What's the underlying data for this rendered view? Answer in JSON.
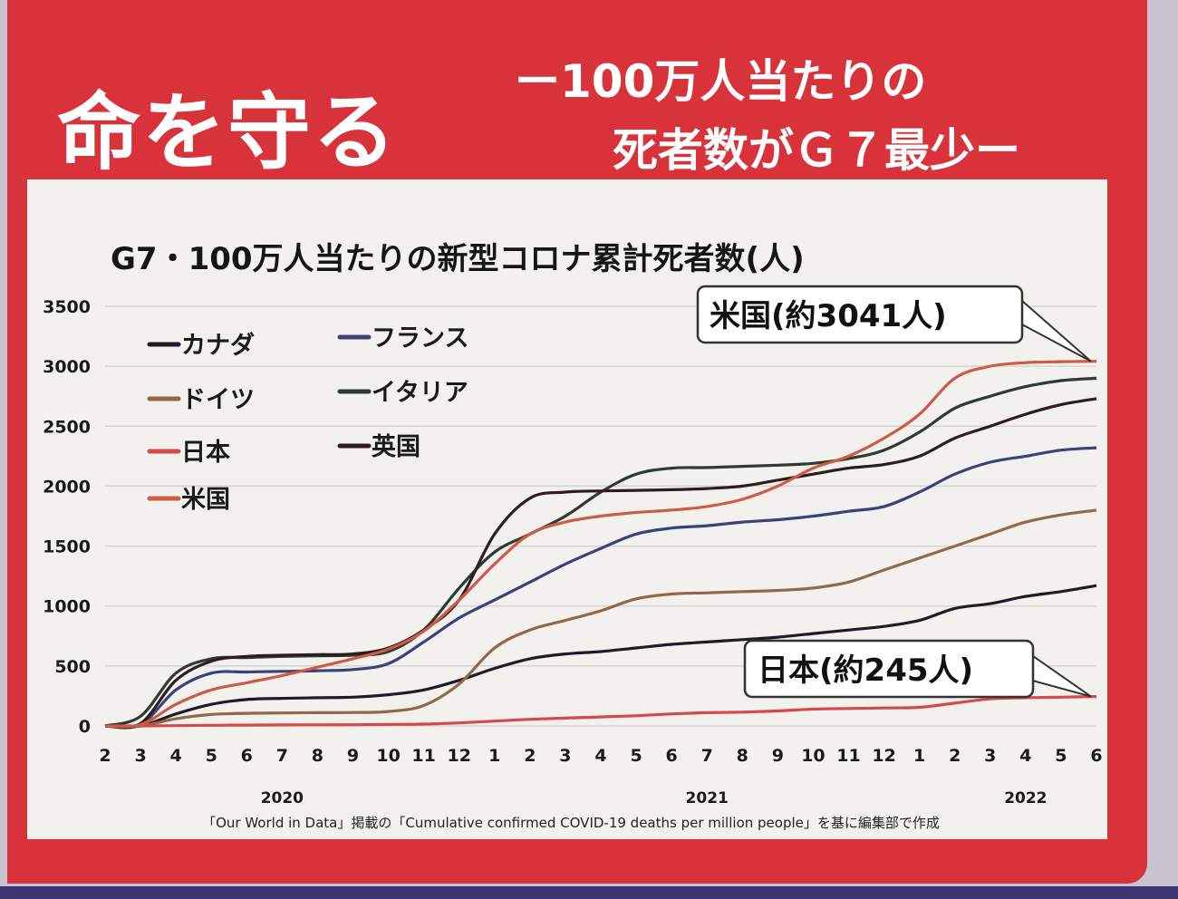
{
  "headline": "命を守る",
  "subheadline_1": "ー100万人当たりの",
  "subheadline_2": "死者数がＧ７最少ー",
  "source_note": "「Our World in Data」掲載の「Cumulative confirmed COVID-19 deaths per million people」を基に編集部で作成",
  "colors": {
    "poster_red": "#d8333b",
    "panel": "#f2f1ed",
    "canada": "#1f1c27",
    "france": "#3a4276",
    "germany": "#93684a",
    "italy": "#2e3a32",
    "japan": "#d44a4c",
    "uk": "#2e1d1f",
    "usa": "#cc5c48"
  },
  "chart_data": {
    "type": "line",
    "title": "G7・100万人当たりの新型コロナ累計死者数(人)",
    "xlabel": "",
    "ylabel": "",
    "ylim": [
      0,
      3500
    ],
    "yticks": [
      0,
      500,
      1000,
      1500,
      2000,
      2500,
      3000,
      3500
    ],
    "grid": true,
    "legend_position": "top-left",
    "x_tick_labels": [
      "2",
      "3",
      "4",
      "5",
      "6",
      "7",
      "8",
      "9",
      "10",
      "11",
      "12",
      "1",
      "2",
      "3",
      "4",
      "5",
      "6",
      "7",
      "8",
      "9",
      "10",
      "11",
      "12",
      "1",
      "2",
      "3",
      "4",
      "5",
      "6"
    ],
    "x_tick_months": [
      "2020-02",
      "2020-03",
      "2020-04",
      "2020-05",
      "2020-06",
      "2020-07",
      "2020-08",
      "2020-09",
      "2020-10",
      "2020-11",
      "2020-12",
      "2021-01",
      "2021-02",
      "2021-03",
      "2021-04",
      "2021-05",
      "2021-06",
      "2021-07",
      "2021-08",
      "2021-09",
      "2021-10",
      "2021-11",
      "2021-12",
      "2022-01",
      "2022-02",
      "2022-03",
      "2022-04",
      "2022-05",
      "2022-06"
    ],
    "year_labels": [
      {
        "label": "2020",
        "month": "2020-07"
      },
      {
        "label": "2021",
        "month": "2021-07"
      },
      {
        "label": "2022",
        "month": "2022-04"
      }
    ],
    "series": [
      {
        "name": "カナダ",
        "color_key": "canada",
        "x": [
          "2020-02",
          "2020-03",
          "2020-04",
          "2020-05",
          "2020-06",
          "2020-07",
          "2020-08",
          "2020-09",
          "2020-10",
          "2020-11",
          "2020-12",
          "2021-01",
          "2021-02",
          "2021-03",
          "2021-04",
          "2021-05",
          "2021-06",
          "2021-07",
          "2021-08",
          "2021-09",
          "2021-10",
          "2021-11",
          "2021-12",
          "2022-01",
          "2022-02",
          "2022-03",
          "2022-04",
          "2022-05",
          "2022-06"
        ],
        "y": [
          0,
          0,
          100,
          180,
          220,
          230,
          235,
          240,
          260,
          300,
          380,
          480,
          560,
          600,
          620,
          650,
          680,
          700,
          720,
          740,
          770,
          800,
          830,
          880,
          980,
          1020,
          1080,
          1120,
          1170
        ]
      },
      {
        "name": "フランス",
        "color_key": "france",
        "x": [
          "2020-02",
          "2020-03",
          "2020-04",
          "2020-05",
          "2020-06",
          "2020-07",
          "2020-08",
          "2020-09",
          "2020-10",
          "2020-11",
          "2020-12",
          "2021-01",
          "2021-02",
          "2021-03",
          "2021-04",
          "2021-05",
          "2021-06",
          "2021-07",
          "2021-08",
          "2021-09",
          "2021-10",
          "2021-11",
          "2021-12",
          "2022-01",
          "2022-02",
          "2022-03",
          "2022-04",
          "2022-05",
          "2022-06"
        ],
        "y": [
          0,
          10,
          300,
          440,
          450,
          455,
          460,
          470,
          520,
          700,
          900,
          1050,
          1200,
          1350,
          1480,
          1600,
          1650,
          1670,
          1700,
          1720,
          1750,
          1790,
          1830,
          1950,
          2100,
          2200,
          2250,
          2300,
          2320
        ]
      },
      {
        "name": "ドイツ",
        "color_key": "germany",
        "x": [
          "2020-02",
          "2020-03",
          "2020-04",
          "2020-05",
          "2020-06",
          "2020-07",
          "2020-08",
          "2020-09",
          "2020-10",
          "2020-11",
          "2020-12",
          "2021-01",
          "2021-02",
          "2021-03",
          "2021-04",
          "2021-05",
          "2021-06",
          "2021-07",
          "2021-08",
          "2021-09",
          "2021-10",
          "2021-11",
          "2021-12",
          "2022-01",
          "2022-02",
          "2022-03",
          "2022-04",
          "2022-05",
          "2022-06"
        ],
        "y": [
          0,
          0,
          60,
          95,
          105,
          108,
          110,
          112,
          120,
          170,
          350,
          650,
          800,
          880,
          960,
          1060,
          1100,
          1110,
          1120,
          1130,
          1150,
          1200,
          1300,
          1400,
          1500,
          1600,
          1700,
          1760,
          1800
        ]
      },
      {
        "name": "イタリア",
        "color_key": "italy",
        "x": [
          "2020-02",
          "2020-03",
          "2020-04",
          "2020-05",
          "2020-06",
          "2020-07",
          "2020-08",
          "2020-09",
          "2020-10",
          "2020-11",
          "2020-12",
          "2021-01",
          "2021-02",
          "2021-03",
          "2021-04",
          "2021-05",
          "2021-06",
          "2021-07",
          "2021-08",
          "2021-09",
          "2021-10",
          "2021-11",
          "2021-12",
          "2022-01",
          "2022-02",
          "2022-03",
          "2022-04",
          "2022-05",
          "2022-06"
        ],
        "y": [
          0,
          80,
          440,
          560,
          570,
          580,
          585,
          590,
          620,
          800,
          1150,
          1450,
          1600,
          1750,
          1950,
          2100,
          2150,
          2155,
          2165,
          2175,
          2190,
          2230,
          2300,
          2450,
          2650,
          2750,
          2830,
          2880,
          2900
        ]
      },
      {
        "name": "日本",
        "color_key": "japan",
        "x": [
          "2020-02",
          "2020-03",
          "2020-04",
          "2020-05",
          "2020-06",
          "2020-07",
          "2020-08",
          "2020-09",
          "2020-10",
          "2020-11",
          "2020-12",
          "2021-01",
          "2021-02",
          "2021-03",
          "2021-04",
          "2021-05",
          "2021-06",
          "2021-07",
          "2021-08",
          "2021-09",
          "2021-10",
          "2021-11",
          "2021-12",
          "2022-01",
          "2022-02",
          "2022-03",
          "2022-04",
          "2022-05",
          "2022-06"
        ],
        "y": [
          0,
          0,
          2,
          5,
          7,
          8,
          9,
          10,
          12,
          15,
          25,
          40,
          55,
          65,
          75,
          85,
          100,
          110,
          115,
          125,
          140,
          145,
          150,
          155,
          190,
          225,
          235,
          240,
          245
        ]
      },
      {
        "name": "英国",
        "color_key": "uk",
        "x": [
          "2020-02",
          "2020-03",
          "2020-04",
          "2020-05",
          "2020-06",
          "2020-07",
          "2020-08",
          "2020-09",
          "2020-10",
          "2020-11",
          "2020-12",
          "2021-01",
          "2021-02",
          "2021-03",
          "2021-04",
          "2021-05",
          "2021-06",
          "2021-07",
          "2021-08",
          "2021-09",
          "2021-10",
          "2021-11",
          "2021-12",
          "2022-01",
          "2022-02",
          "2022-03",
          "2022-04",
          "2022-05",
          "2022-06"
        ],
        "y": [
          0,
          20,
          380,
          540,
          580,
          590,
          595,
          600,
          650,
          800,
          1050,
          1600,
          1900,
          1950,
          1960,
          1965,
          1970,
          1980,
          2000,
          2050,
          2100,
          2150,
          2180,
          2250,
          2400,
          2500,
          2600,
          2680,
          2730
        ]
      },
      {
        "name": "米国",
        "color_key": "usa",
        "x": [
          "2020-02",
          "2020-03",
          "2020-04",
          "2020-05",
          "2020-06",
          "2020-07",
          "2020-08",
          "2020-09",
          "2020-10",
          "2020-11",
          "2020-12",
          "2021-01",
          "2021-02",
          "2021-03",
          "2021-04",
          "2021-05",
          "2021-06",
          "2021-07",
          "2021-08",
          "2021-09",
          "2021-10",
          "2021-11",
          "2021-12",
          "2022-01",
          "2022-02",
          "2022-03",
          "2022-04",
          "2022-05",
          "2022-06"
        ],
        "y": [
          0,
          10,
          180,
          300,
          360,
          420,
          490,
          560,
          640,
          790,
          1050,
          1350,
          1600,
          1700,
          1750,
          1780,
          1800,
          1830,
          1890,
          2000,
          2150,
          2250,
          2400,
          2600,
          2900,
          3000,
          3030,
          3038,
          3041
        ]
      }
    ],
    "annotations": [
      {
        "text": "米国(約3041人)",
        "series": "米国",
        "x": "2022-06",
        "y": 3041
      },
      {
        "text": "日本(約245人)",
        "series": "日本",
        "x": "2022-06",
        "y": 245
      }
    ]
  }
}
